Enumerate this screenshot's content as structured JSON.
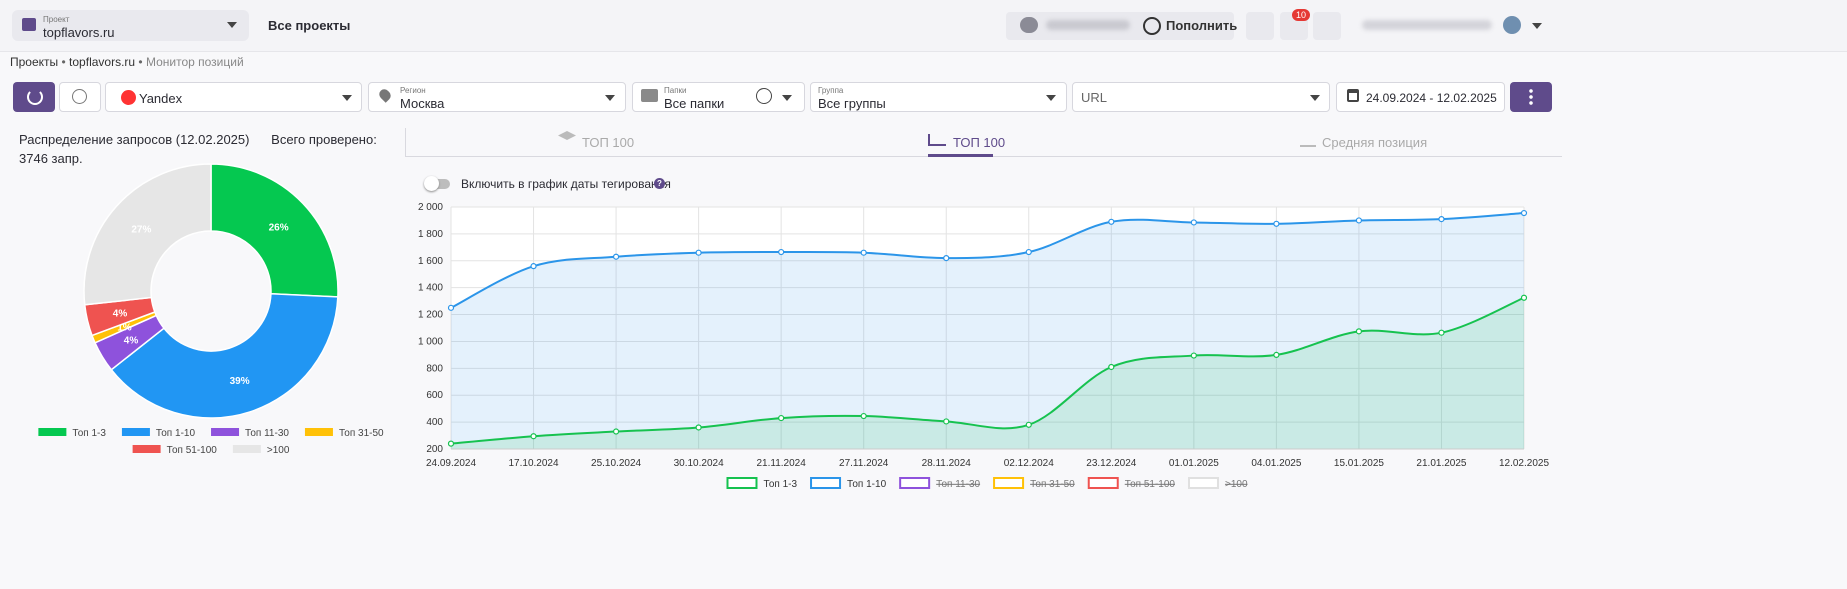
{
  "header": {
    "project_label": "Проект",
    "project": "topflavors.ru",
    "all_projects": "Все проекты",
    "top_up": "Пополнить",
    "notifications": "10"
  },
  "breadcrumb": [
    "Проекты",
    "topflavors.ru",
    "Монитор позиций"
  ],
  "toolbar": {
    "engine": "Yandex",
    "region_label": "Регион",
    "region": "Москва",
    "folders_label": "Папки",
    "folders": "Все папки",
    "group_label": "Группа",
    "group": "Все группы",
    "url": "URL",
    "date_range": "24.09.2024 - 12.02.2025"
  },
  "tabs": [
    "ТОП 100",
    "ТОП 100",
    "Средняя позиция"
  ],
  "toggle_label": "Включить в график даты тегирования",
  "chart_data": [
    {
      "type": "pie",
      "title": "Распределение запросов (12.02.2025)",
      "subtitle": "Всего проверено: 3746 запр.",
      "categories": [
        "Топ 1-3",
        "Топ 1-10",
        "Топ 11-30",
        "Топ 31-50",
        "Топ 51-100",
        ">100"
      ],
      "values": [
        26,
        39,
        4,
        1,
        4,
        27
      ],
      "value_labels": [
        "26%",
        "39%",
        "4%",
        "1%",
        "4%",
        "27%"
      ],
      "colors": [
        "#05c850",
        "#2196f3",
        "#8e52dc",
        "#ffc107",
        "#ef5350",
        "#e6e6e6"
      ]
    },
    {
      "type": "line",
      "categories": [
        "24.09.2024",
        "17.10.2024",
        "25.10.2024",
        "30.10.2024",
        "21.11.2024",
        "27.11.2024",
        "28.11.2024",
        "02.12.2024",
        "23.12.2024",
        "01.01.2025",
        "04.01.2025",
        "15.01.2025",
        "21.01.2025",
        "12.02.2025"
      ],
      "series": [
        {
          "name": "Топ 1-3",
          "color": "#16c24f",
          "values": [
            240,
            295,
            330,
            360,
            430,
            445,
            405,
            380,
            810,
            895,
            900,
            1075,
            1065,
            1325
          ]
        },
        {
          "name": "Топ 1-10",
          "color": "#2b95e9",
          "values": [
            1250,
            1560,
            1630,
            1660,
            1665,
            1660,
            1620,
            1665,
            1890,
            1885,
            1875,
            1900,
            1910,
            1955
          ]
        }
      ],
      "hidden_series": [
        {
          "name": "Топ 11-30",
          "color": "#8e52dc"
        },
        {
          "name": "Топ 31-50",
          "color": "#ffc107"
        },
        {
          "name": "Топ 51-100",
          "color": "#ef5350"
        },
        {
          "name": ">100",
          "color": "#e0e0e0"
        }
      ],
      "ylim": [
        200,
        2000
      ],
      "yticks": [
        200,
        400,
        600,
        800,
        {
          "value": 1000,
          "label": "1 000"
        },
        {
          "value": 1200,
          "label": "1 200"
        },
        {
          "value": 1400,
          "label": "1 400"
        },
        {
          "value": 1600,
          "label": "1 600"
        },
        {
          "value": 1800,
          "label": "1 800"
        },
        {
          "value": 2000,
          "label": "2 000"
        }
      ],
      "grid": true
    }
  ]
}
